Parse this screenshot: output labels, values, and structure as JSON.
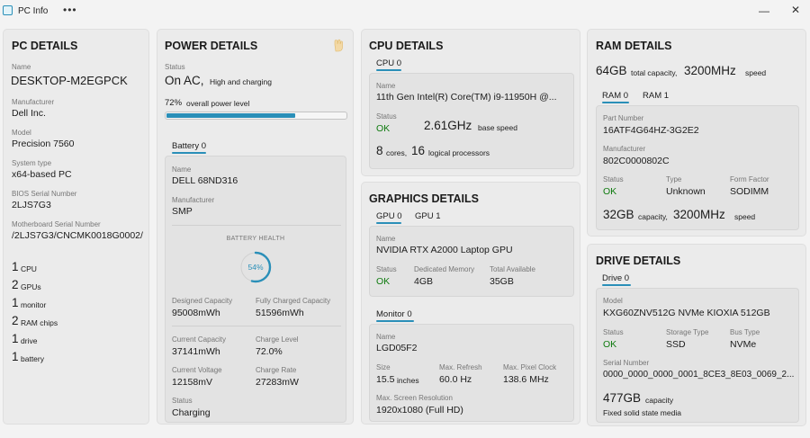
{
  "window": {
    "title": "PC Info",
    "menu": "•••",
    "min": "—",
    "close": "✕"
  },
  "pc": {
    "heading": "PC DETAILS",
    "name_label": "Name",
    "name": "DESKTOP-M2EGPCK",
    "manufacturer_label": "Manufacturer",
    "manufacturer": "Dell Inc.",
    "model_label": "Model",
    "model": "Precision 7560",
    "systype_label": "System type",
    "systype": "x64-based PC",
    "bios_label": "BIOS Serial Number",
    "bios": "2LJS7G3",
    "mb_label": "Motherboard Serial Number",
    "mb": "/2LJS7G3/CNCMK0018G0002/",
    "counts": [
      {
        "n": "1",
        "label": "CPU"
      },
      {
        "n": "2",
        "label": "GPUs"
      },
      {
        "n": "1",
        "label": "monitor"
      },
      {
        "n": "2",
        "label": "RAM chips"
      },
      {
        "n": "1",
        "label": "drive"
      },
      {
        "n": "1",
        "label": "battery"
      }
    ]
  },
  "power": {
    "heading": "POWER DETAILS",
    "status_label": "Status",
    "status": "On AC,",
    "status_sub": "High and charging",
    "level_pct": "72%",
    "level_text": "overall power level",
    "level_value": 0.72,
    "tab": "Battery 0",
    "name_label": "Name",
    "name": "DELL 68ND316",
    "manufacturer_label": "Manufacturer",
    "manufacturer": "SMP",
    "health_label": "BATTERY HEALTH",
    "health_pct": "54%",
    "health_value": 0.54,
    "designed_label": "Designed Capacity",
    "designed": "95008mWh",
    "full_label": "Fully Charged Capacity",
    "full": "51596mWh",
    "current_cap_label": "Current Capacity",
    "current_cap": "37141mWh",
    "charge_level_label": "Charge Level",
    "charge_level": "72.0%",
    "voltage_label": "Current Voltage",
    "voltage": "12158mV",
    "rate_label": "Charge Rate",
    "rate": "27283mW",
    "status2_label": "Status",
    "status2": "Charging"
  },
  "cpu": {
    "heading": "CPU DETAILS",
    "tab": "CPU 0",
    "name_label": "Name",
    "name": "11th Gen Intel(R) Core(TM) i9-11950H @...",
    "status_label": "Status",
    "status": "OK",
    "speed": "2.61GHz",
    "speed_sub": "base speed",
    "cores_n": "8",
    "cores_l": "cores,",
    "lp_n": "16",
    "lp_l": "logical processors"
  },
  "gpu": {
    "heading": "GRAPHICS DETAILS",
    "tabs": [
      "GPU 0",
      "GPU 1"
    ],
    "name_label": "Name",
    "name": "NVIDIA RTX A2000 Laptop GPU",
    "status_label": "Status",
    "status": "OK",
    "dedicated_label": "Dedicated Memory",
    "dedicated": "4GB",
    "total_label": "Total Available",
    "total": "35GB",
    "monitor_tab": "Monitor 0",
    "mon_name_label": "Name",
    "mon_name": "LGD05F2",
    "size_label": "Size",
    "size_n": "15.5",
    "size_u": "inches",
    "refresh_label": "Max. Refresh",
    "refresh": "60.0 Hz",
    "clock_label": "Max. Pixel Clock",
    "clock": "138.6 MHz",
    "res_label": "Max. Screen Resolution",
    "res": "1920x1080 (Full HD)"
  },
  "ram": {
    "heading": "RAM DETAILS",
    "total": "64GB",
    "total_sub": "total capacity,",
    "speed": "3200MHz",
    "speed_sub": "speed",
    "tabs": [
      "RAM 0",
      "RAM 1"
    ],
    "part_label": "Part Number",
    "part": "16ATF4G64HZ-3G2E2",
    "manufacturer_label": "Manufacturer",
    "manufacturer": "802C0000802C",
    "status_label": "Status",
    "status": "OK",
    "type_label": "Type",
    "type": "Unknown",
    "form_label": "Form Factor",
    "form": "SODIMM",
    "cap": "32GB",
    "cap_sub": "capacity,",
    "cap_speed": "3200MHz",
    "cap_speed_sub": "speed"
  },
  "drive": {
    "heading": "DRIVE DETAILS",
    "tab": "Drive 0",
    "model_label": "Model",
    "model": "KXG60ZNV512G NVMe KIOXIA 512GB",
    "status_label": "Status",
    "status": "OK",
    "storage_label": "Storage Type",
    "storage": "SSD",
    "bus_label": "Bus Type",
    "bus": "NVMe",
    "serial_label": "Serial Number",
    "serial": "0000_0000_0000_0001_8CE3_8E03_0069_2...",
    "cap": "477GB",
    "cap_sub": "capacity",
    "media": "Fixed solid state media"
  },
  "colors": {
    "accent": "#2a8fb8",
    "ok": "#0f7b0f"
  }
}
